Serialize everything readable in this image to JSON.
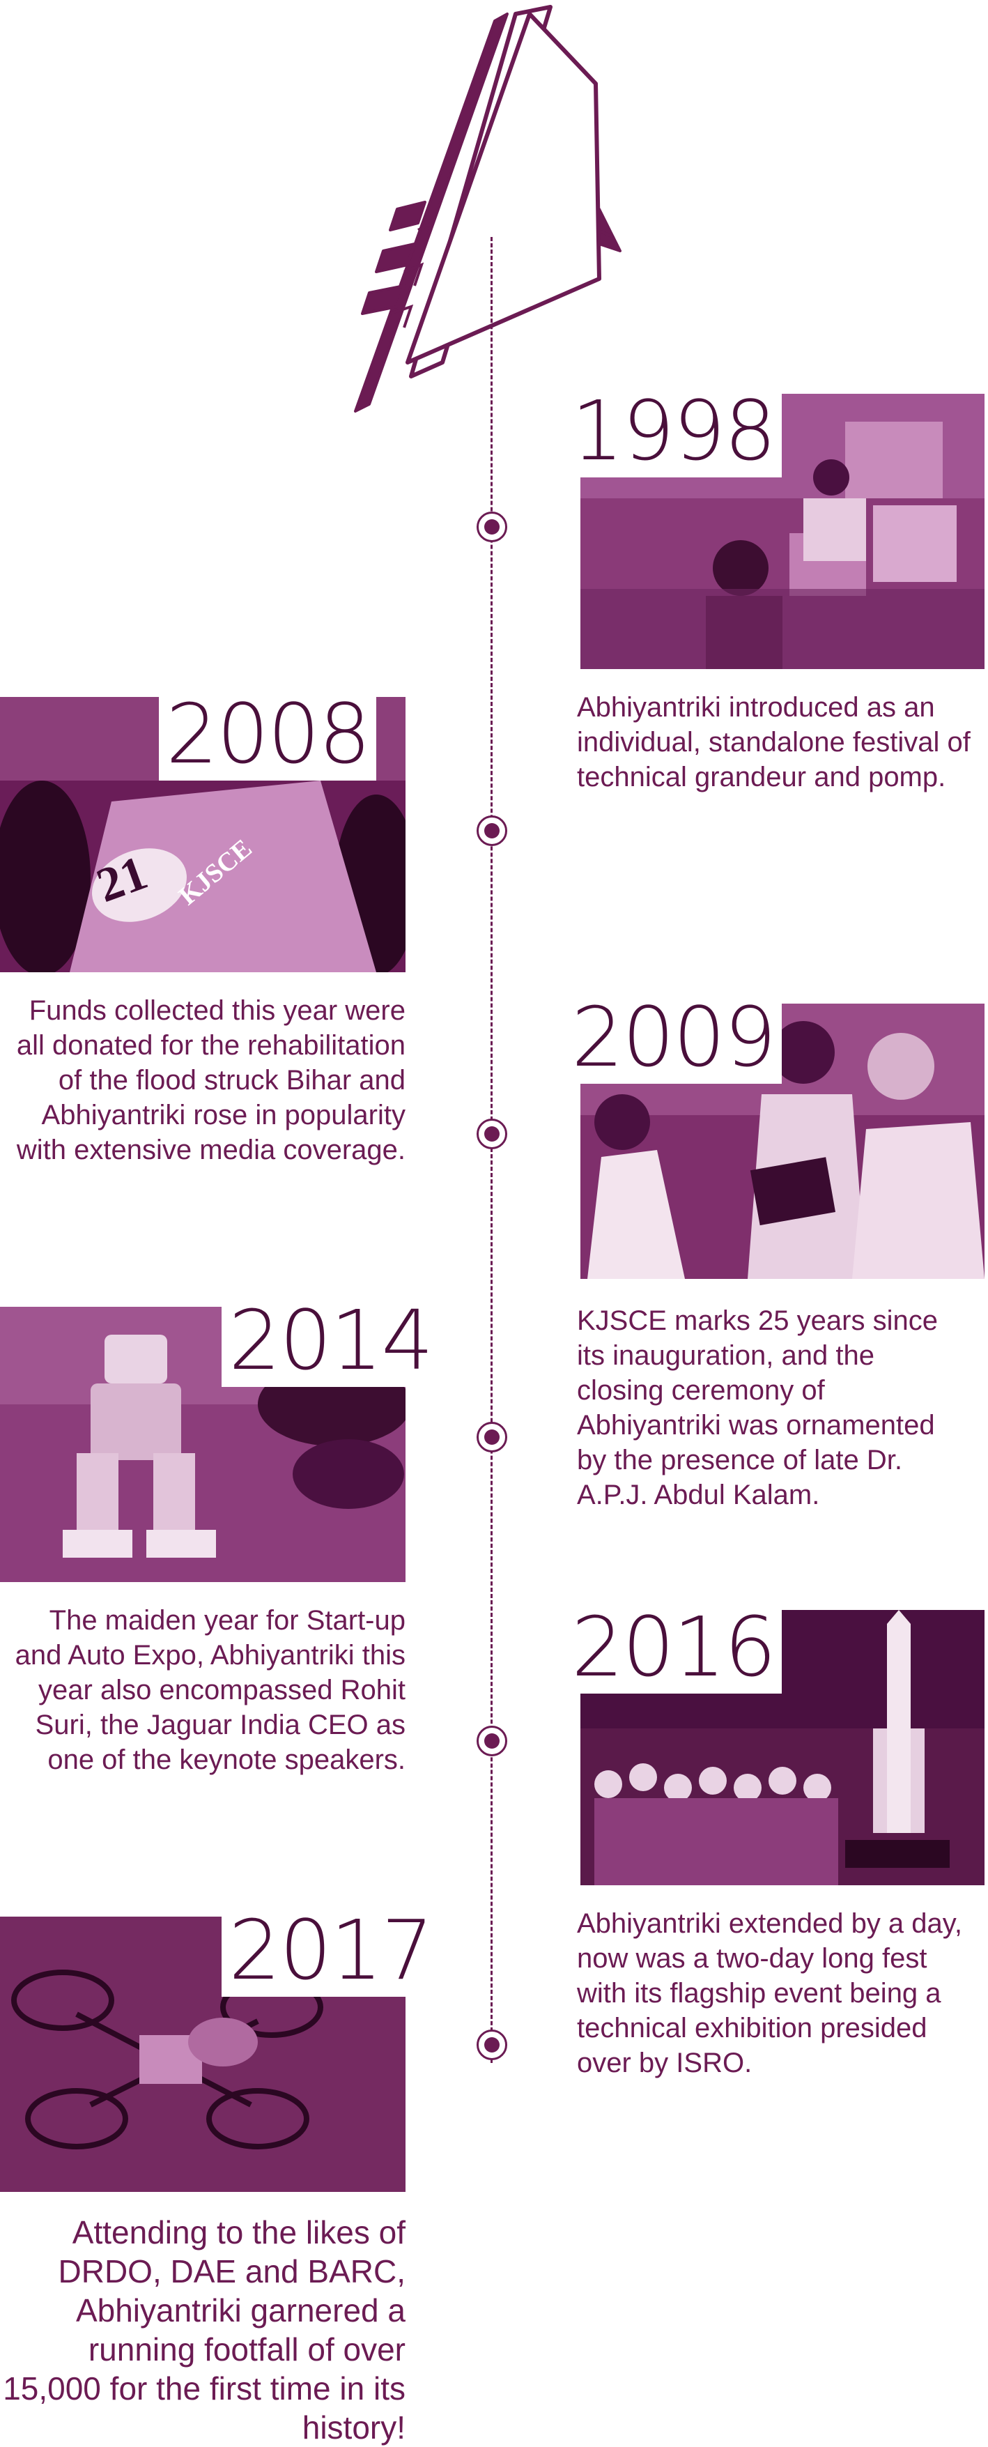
{
  "brand": {
    "logo_icon": "abhiyantriki-logo-icon",
    "accent_color": "#6b1b53",
    "photo_tint": "#7a2a66"
  },
  "timeline": [
    {
      "year": "1998",
      "side": "right",
      "photo_icon": "computer-lab-photo",
      "description": " Abhiyantriki introduced as an individual, standalone festival of technical grandeur and pomp."
    },
    {
      "year": "2008",
      "side": "left",
      "photo_icon": "race-car-photo",
      "description": "Funds collected this year were all donated for the rehabilitation of the flood struck Bihar and Abhiyantriki rose in popularity with extensive media coverage."
    },
    {
      "year": "2009",
      "side": "right",
      "photo_icon": "award-ceremony-photo",
      "description": "KJSCE marks 25 years since its inauguration,  and the closing ceremony of Abhiyantriki was ornamented by the presence of late Dr. A.P.J. Abdul Kalam."
    },
    {
      "year": "2014",
      "side": "left",
      "photo_icon": "humanoid-robot-photo",
      "description": "The maiden year for Start-up and Auto Expo, Abhiyantriki this year also encompassed Rohit Suri, the Jaguar India CEO as one of the keynote speakers."
    },
    {
      "year": "2016",
      "side": "right",
      "photo_icon": "rocket-exhibition-photo",
      "description": "Abhiyantriki extended by a day, now was a two-day long fest with its flagship event being a technical exhibition presided over by ISRO."
    },
    {
      "year": "2017",
      "side": "left",
      "photo_icon": "quadcopter-drone-photo",
      "description": "Attending to the likes of DRDO, DAE and BARC, Abhiyantriki garnered a running footfall of over 15,000 for the first time in its history!"
    }
  ]
}
